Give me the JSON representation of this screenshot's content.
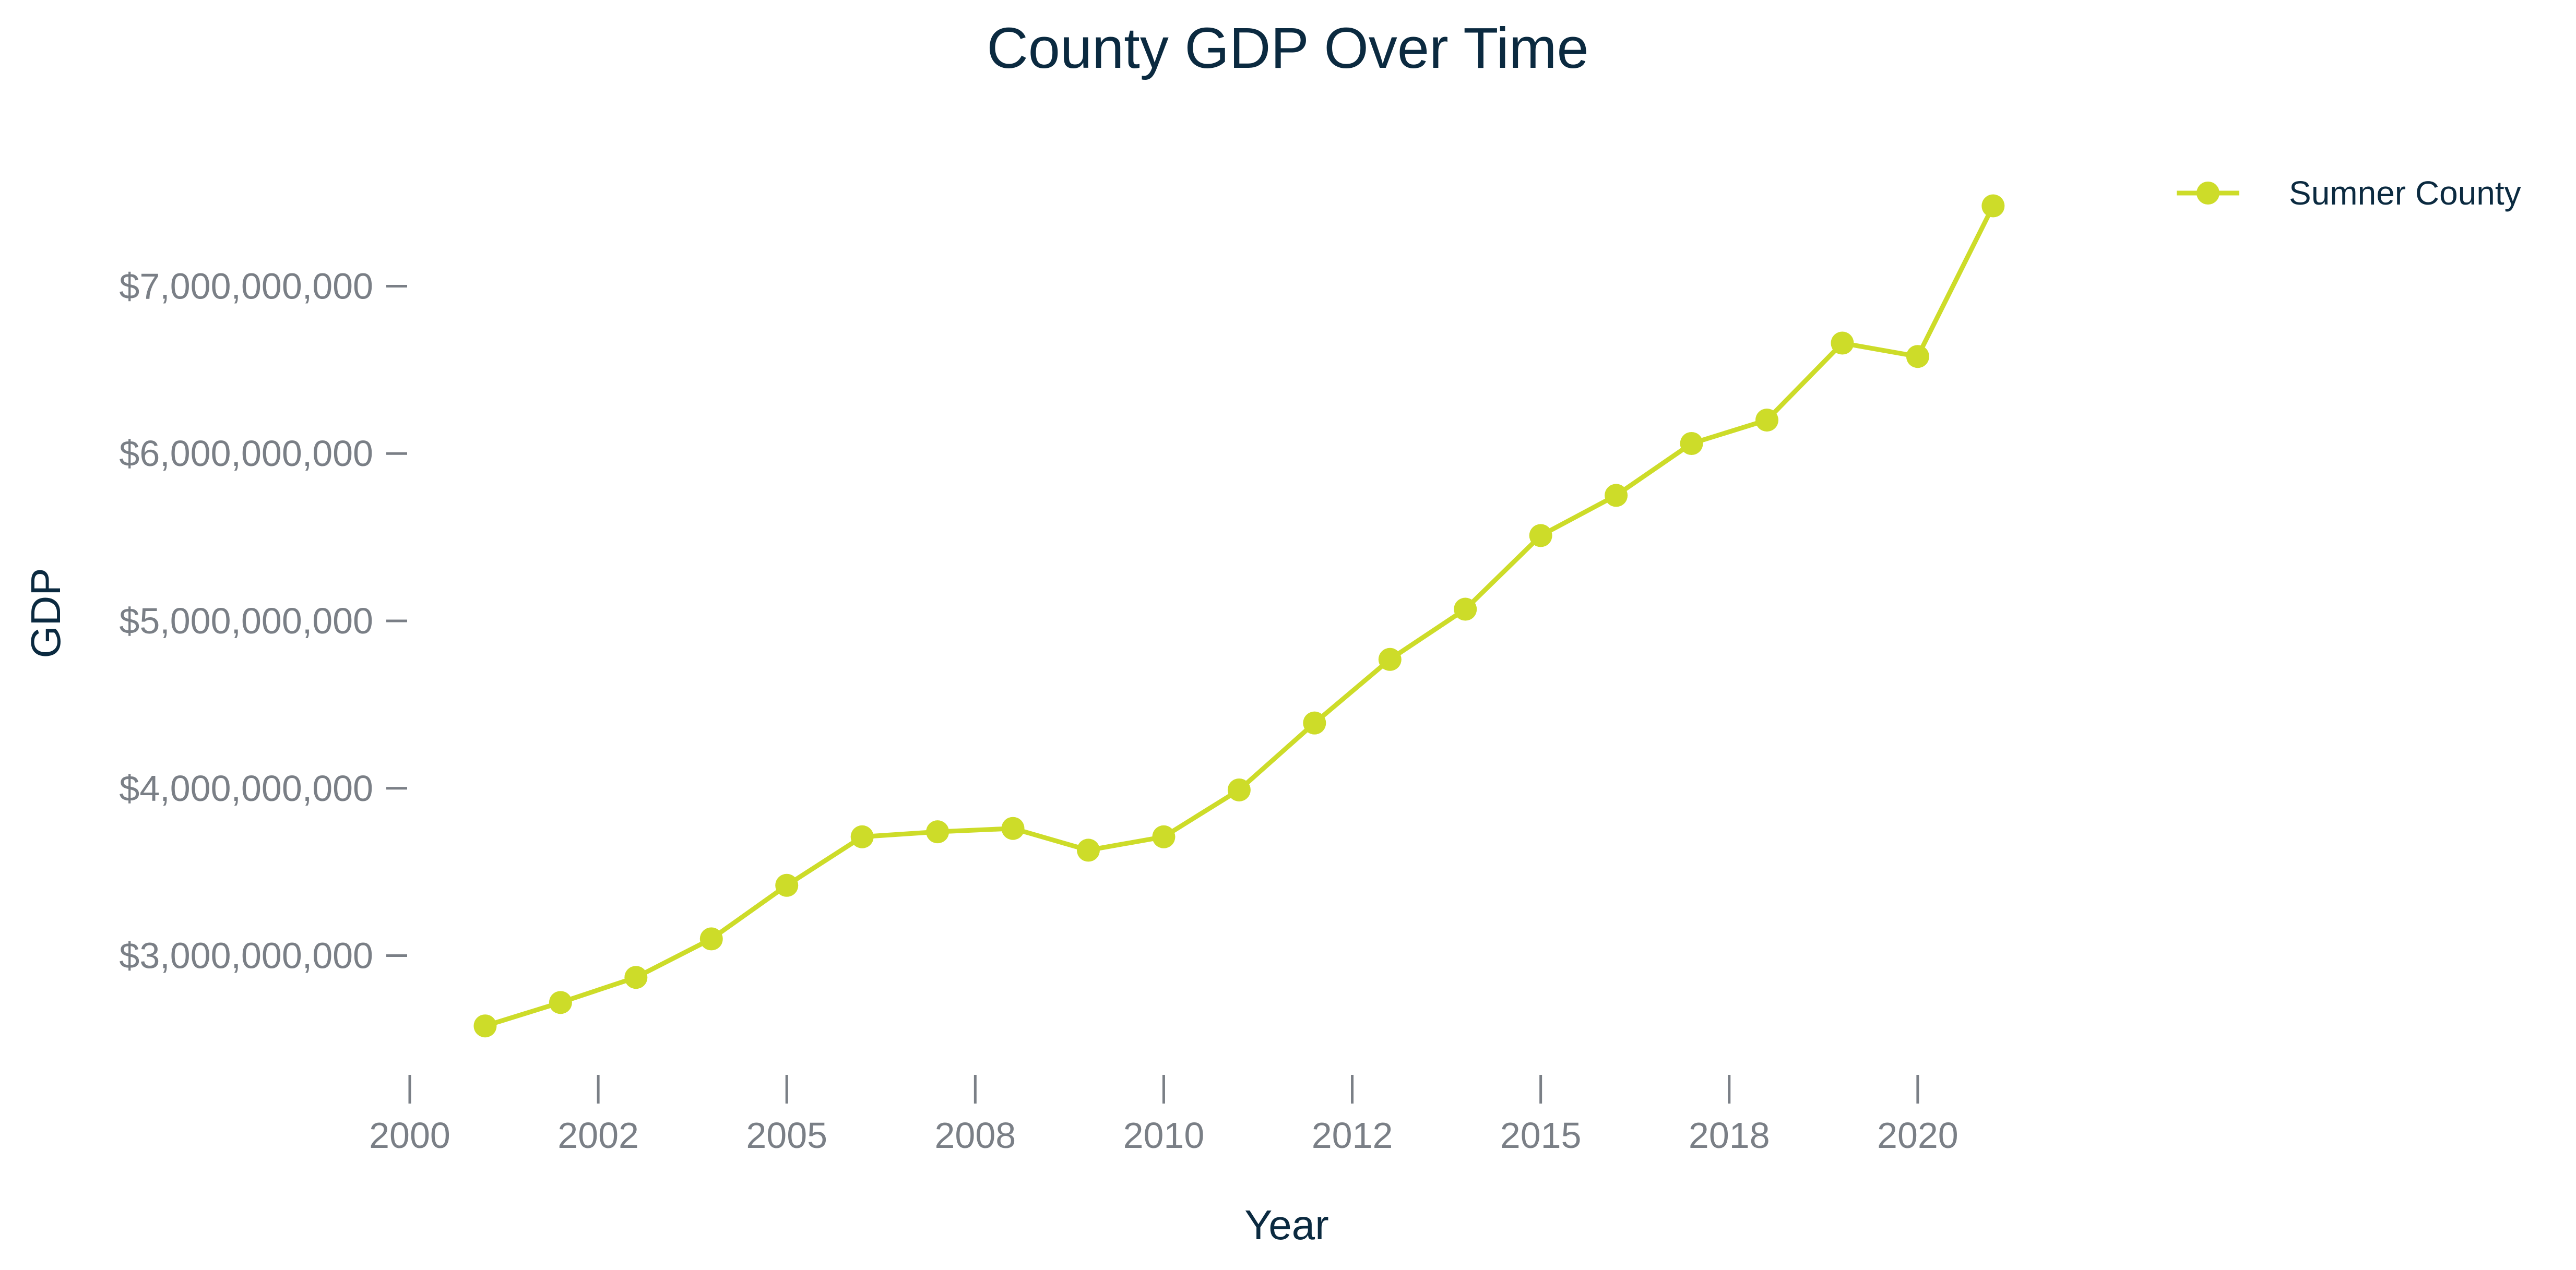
{
  "chart_data": {
    "type": "line",
    "title": "County GDP Over Time",
    "xlabel": "Year",
    "ylabel": "GDP",
    "xlim": [
      2000,
      2022.5
    ],
    "ylim": [
      2350000000,
      7650000000
    ],
    "x_ticks": [
      2000,
      2002.5,
      2005,
      2007.5,
      2010,
      2012.5,
      2015,
      2017.5,
      2020
    ],
    "x_tick_labels": [
      "2000",
      "2002",
      "2005",
      "2008",
      "2010",
      "2012",
      "2015",
      "2018",
      "2020"
    ],
    "y_ticks": [
      3000000000,
      4000000000,
      5000000000,
      6000000000,
      7000000000
    ],
    "y_tick_labels": [
      "$3,000,000,000",
      "$4,000,000,000",
      "$5,000,000,000",
      "$6,000,000,000",
      "$7,000,000,000"
    ],
    "grid": false,
    "legend": "top-right",
    "x": [
      2001,
      2002,
      2003,
      2004,
      2005,
      2006,
      2007,
      2008,
      2009,
      2010,
      2011,
      2012,
      2013,
      2014,
      2015,
      2016,
      2017,
      2018,
      2019,
      2020,
      2021
    ],
    "series": [
      {
        "name": "Sumner County",
        "color": "#cddc29",
        "values": [
          2580000000,
          2720000000,
          2870000000,
          3100000000,
          3420000000,
          3710000000,
          3740000000,
          3760000000,
          3630000000,
          3710000000,
          3990000000,
          4390000000,
          4770000000,
          5070000000,
          5510000000,
          5750000000,
          6060000000,
          6200000000,
          6660000000,
          6580000000,
          7480000000
        ]
      }
    ]
  }
}
